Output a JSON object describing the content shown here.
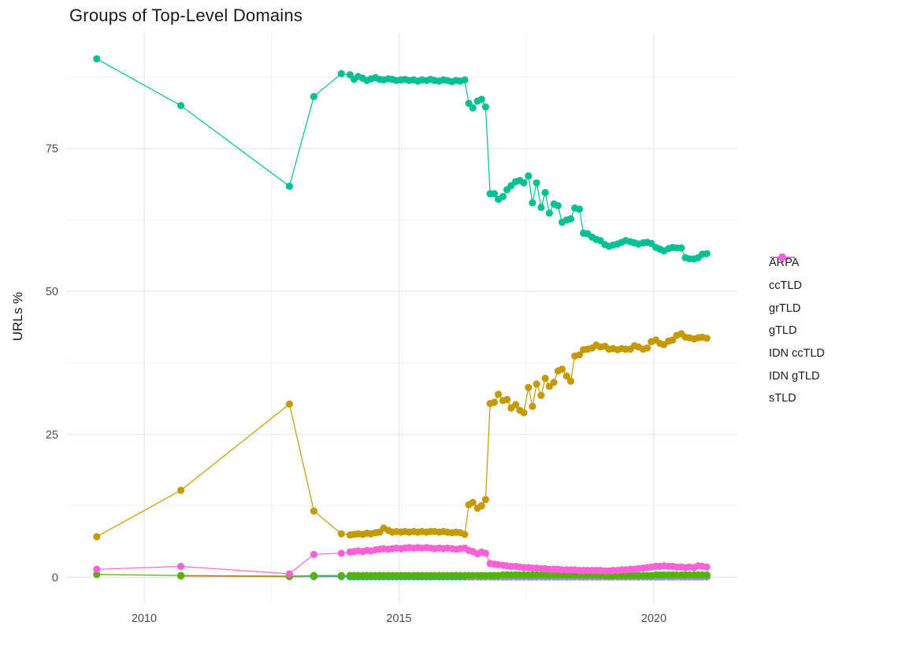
{
  "chart_data": {
    "type": "line",
    "title": "Groups of Top-Level Domains",
    "xlabel": "",
    "ylabel": "URLs %",
    "legend_position": "right",
    "grid": true,
    "x_ticks": [
      2010,
      2015,
      2020
    ],
    "x_minor_ticks": [
      2012.5,
      2017.5
    ],
    "y_ticks": [
      0,
      25,
      50,
      75
    ],
    "y_minor_ticks": [
      12.5,
      37.5,
      62.5,
      87.5
    ],
    "xlim": [
      2008.47,
      2021.64
    ],
    "ylim": [
      -4.5,
      95.2
    ],
    "grid_major_color": "#e3e3e3",
    "grid_minor_color": "#f0f0f0",
    "draw_order": [
      "ARPA",
      "IDN ccTLD",
      "IDN gTLD",
      "grTLD",
      "sTLD",
      "ccTLD",
      "gTLD"
    ],
    "x": [
      2009.07,
      2010.72,
      2012.85,
      2013.33,
      2013.87,
      2014.04,
      2014.12,
      2014.2,
      2014.29,
      2014.37,
      2014.45,
      2014.54,
      2014.62,
      2014.7,
      2014.79,
      2014.87,
      2014.95,
      2015.04,
      2015.12,
      2015.2,
      2015.29,
      2015.37,
      2015.45,
      2015.54,
      2015.62,
      2015.7,
      2015.79,
      2015.87,
      2015.95,
      2016.04,
      2016.12,
      2016.2,
      2016.29,
      2016.37,
      2016.45,
      2016.54,
      2016.62,
      2016.7,
      2016.79,
      2016.87,
      2016.95,
      2017.04,
      2017.12,
      2017.2,
      2017.29,
      2017.37,
      2017.45,
      2017.54,
      2017.62,
      2017.7,
      2017.79,
      2017.87,
      2017.95,
      2018.04,
      2018.12,
      2018.2,
      2018.29,
      2018.37,
      2018.45,
      2018.54,
      2018.62,
      2018.7,
      2018.79,
      2018.87,
      2018.95,
      2019.04,
      2019.12,
      2019.2,
      2019.29,
      2019.37,
      2019.45,
      2019.54,
      2019.62,
      2019.7,
      2019.79,
      2019.87,
      2019.95,
      2020.04,
      2020.12,
      2020.2,
      2020.29,
      2020.37,
      2020.45,
      2020.54,
      2020.62,
      2020.7,
      2020.79,
      2020.87,
      2020.95,
      2021.04
    ],
    "series": [
      {
        "name": "ARPA",
        "color": "#F8766D",
        "values": [
          null,
          0.2,
          0.1,
          0.1,
          0.1,
          0.1,
          0.1,
          0.1,
          0.1,
          0.1,
          0.1,
          0.1,
          0.1,
          0.1,
          0.1,
          0.1,
          0.1,
          0.1,
          0.1,
          0.1,
          0.1,
          0.1,
          0.1,
          0.1,
          0.1,
          0.1,
          0.1,
          0.1,
          0.1,
          0.1,
          0.1,
          0.1,
          0.1,
          0.1,
          0.1,
          0.1,
          0.1,
          0.1,
          0.1,
          0.1,
          0.1,
          0.1,
          0.1,
          0.1,
          0.1,
          0.1,
          0.1,
          0.1,
          0.1,
          0.1,
          0.1,
          0.1,
          0.1,
          0.1,
          0.1,
          0.1,
          0.1,
          0.1,
          0.1,
          0.1,
          0.1,
          0.1,
          0.1,
          0.1,
          0.1,
          0.1,
          0.1,
          0.1,
          0.1,
          0.1,
          0.1,
          0.1,
          0.1,
          0.1,
          0.1,
          0.1,
          0.1,
          0.1,
          0.1,
          0.1,
          0.1,
          0.1,
          0.1,
          0.1,
          0.1,
          0.1,
          0.1,
          0.1,
          0.1,
          0.1
        ]
      },
      {
        "name": "ccTLD",
        "color": "#C49A00",
        "values": [
          7.1,
          15.2,
          30.3,
          11.6,
          7.6,
          7.4,
          7.5,
          7.6,
          7.5,
          7.7,
          7.6,
          7.8,
          7.9,
          8.6,
          8.2,
          7.9,
          8.0,
          7.9,
          8.0,
          7.9,
          8.0,
          7.9,
          8.0,
          7.9,
          8.0,
          8.0,
          7.9,
          8.0,
          7.9,
          7.8,
          7.9,
          7.8,
          7.5,
          12.7,
          13.1,
          12.1,
          12.5,
          13.6,
          30.4,
          30.6,
          32.0,
          30.9,
          31.1,
          29.6,
          30.2,
          29.2,
          28.8,
          33.2,
          29.9,
          33.8,
          31.8,
          34.8,
          33.4,
          34.1,
          36.1,
          36.4,
          35.2,
          34.3,
          38.7,
          38.9,
          39.8,
          39.9,
          40.1,
          40.6,
          40.3,
          40.4,
          39.9,
          40.0,
          39.8,
          40.0,
          39.9,
          39.9,
          40.5,
          40.3,
          39.9,
          40.1,
          41.2,
          41.5,
          40.9,
          40.7,
          41.3,
          41.5,
          42.3,
          42.6,
          42.0,
          41.9,
          41.7,
          41.9,
          42.0,
          41.8
        ]
      },
      {
        "name": "grTLD",
        "color": "#53B400",
        "values": [
          0.5,
          0.3,
          0.2,
          0.3,
          0.3,
          0.3,
          0.3,
          0.3,
          0.3,
          0.3,
          0.3,
          0.3,
          0.3,
          0.3,
          0.3,
          0.3,
          0.3,
          0.3,
          0.3,
          0.3,
          0.3,
          0.3,
          0.3,
          0.3,
          0.3,
          0.3,
          0.3,
          0.3,
          0.3,
          0.3,
          0.3,
          0.3,
          0.3,
          0.3,
          0.3,
          0.3,
          0.3,
          0.3,
          0.3,
          0.3,
          0.3,
          0.4,
          0.4,
          0.4,
          0.4,
          0.4,
          0.4,
          0.4,
          0.4,
          0.4,
          0.4,
          0.4,
          0.4,
          0.4,
          0.4,
          0.4,
          0.4,
          0.4,
          0.4,
          0.4,
          0.4,
          0.4,
          0.4,
          0.4,
          0.4,
          0.3,
          0.3,
          0.3,
          0.3,
          0.3,
          0.3,
          0.3,
          0.3,
          0.3,
          0.3,
          0.3,
          0.3,
          0.4,
          0.4,
          0.4,
          0.4,
          0.4,
          0.4,
          0.4,
          0.4,
          0.4,
          0.4,
          0.4,
          0.4,
          0.4
        ]
      },
      {
        "name": "gTLD",
        "color": "#00C094",
        "values": [
          90.7,
          82.5,
          68.4,
          84.1,
          88.1,
          87.9,
          87.1,
          87.6,
          87.3,
          86.9,
          87.2,
          87.4,
          87.1,
          87.0,
          87.2,
          87.1,
          86.9,
          87.0,
          87.1,
          86.9,
          87.0,
          86.8,
          87.0,
          86.9,
          87.1,
          86.9,
          86.8,
          87.0,
          86.9,
          86.7,
          86.9,
          86.8,
          87.0,
          82.9,
          82.1,
          83.3,
          83.6,
          82.3,
          67.1,
          67.1,
          66.1,
          66.6,
          67.8,
          68.5,
          69.2,
          69.4,
          69.0,
          70.2,
          65.5,
          69.0,
          64.7,
          67.3,
          63.7,
          65.3,
          65.0,
          62.1,
          62.5,
          62.7,
          64.6,
          64.4,
          60.2,
          60.1,
          59.5,
          59.1,
          58.9,
          58.2,
          57.9,
          58.1,
          58.3,
          58.6,
          58.9,
          58.7,
          58.5,
          58.3,
          58.5,
          58.6,
          58.4,
          57.7,
          57.4,
          57.1,
          57.5,
          57.7,
          57.6,
          57.6,
          55.9,
          55.7,
          55.7,
          55.9,
          56.5,
          56.6
        ]
      },
      {
        "name": "IDN ccTLD",
        "color": "#00B6EB",
        "values": [
          null,
          null,
          0.2,
          0.2,
          0.15,
          0.1,
          0.1,
          0.1,
          0.1,
          0.1,
          0.1,
          0.1,
          0.1,
          0.1,
          0.1,
          0.1,
          0.1,
          0.1,
          0.1,
          0.1,
          0.1,
          0.1,
          0.1,
          0.1,
          0.1,
          0.1,
          0.1,
          0.1,
          0.1,
          0.1,
          0.1,
          0.1,
          0.1,
          0.1,
          0.1,
          0.1,
          0.1,
          0.1,
          0.1,
          0.1,
          0.1,
          0.1,
          0.1,
          0.1,
          0.1,
          0.1,
          0.1,
          0.1,
          0.1,
          0.1,
          0.1,
          0.1,
          0.1,
          0.1,
          0.1,
          0.1,
          0.1,
          0.1,
          0.1,
          0.1,
          0.1,
          0.1,
          0.1,
          0.1,
          0.1,
          0.1,
          0.1,
          0.1,
          0.1,
          0.1,
          0.1,
          0.1,
          0.1,
          0.1,
          0.1,
          0.1,
          0.1,
          0.1,
          0.1,
          0.1,
          0.1,
          0.1,
          0.1,
          0.1,
          0.1,
          0.1,
          0.1,
          0.1,
          0.1,
          0.1
        ]
      },
      {
        "name": "IDN gTLD",
        "color": "#A58AFF",
        "values": [
          null,
          null,
          null,
          null,
          null,
          null,
          null,
          null,
          null,
          null,
          null,
          null,
          null,
          null,
          null,
          null,
          null,
          null,
          null,
          null,
          null,
          null,
          null,
          null,
          null,
          null,
          null,
          null,
          null,
          null,
          null,
          null,
          null,
          0.05,
          0.05,
          0.05,
          0.05,
          0.05,
          0.05,
          0.05,
          0.05,
          0.05,
          0.05,
          0.05,
          0.05,
          0.05,
          0.05,
          0.05,
          0.05,
          0.05,
          0.05,
          0.05,
          0.05,
          0.05,
          0.05,
          0.05,
          0.05,
          0.05,
          0.05,
          0.05,
          0.05,
          0.05,
          0.05,
          0.05,
          0.05,
          0.05,
          0.05,
          0.05,
          0.05,
          0.05,
          0.05,
          0.05,
          0.05,
          0.05,
          0.05,
          0.05,
          0.05,
          0.05,
          0.05,
          0.05,
          0.05,
          0.05,
          0.05,
          0.05,
          0.05,
          0.05,
          0.05,
          0.05,
          0.05,
          0.05
        ]
      },
      {
        "name": "sTLD",
        "color": "#FB61D7",
        "values": [
          1.4,
          1.9,
          0.6,
          4.0,
          4.2,
          4.4,
          4.5,
          4.6,
          4.5,
          4.7,
          4.6,
          4.8,
          4.9,
          5.0,
          4.9,
          5.0,
          5.1,
          5.0,
          5.1,
          5.2,
          5.1,
          5.2,
          5.1,
          5.2,
          5.1,
          5.0,
          5.1,
          5.0,
          5.1,
          5.0,
          4.9,
          5.0,
          5.1,
          4.7,
          4.5,
          4.1,
          4.4,
          4.2,
          2.4,
          2.3,
          2.2,
          2.1,
          2.0,
          1.9,
          1.9,
          1.8,
          1.7,
          1.7,
          1.6,
          1.6,
          1.5,
          1.5,
          1.4,
          1.4,
          1.4,
          1.3,
          1.3,
          1.3,
          1.3,
          1.2,
          1.2,
          1.2,
          1.2,
          1.2,
          1.2,
          1.1,
          1.1,
          1.2,
          1.2,
          1.3,
          1.3,
          1.4,
          1.4,
          1.5,
          1.6,
          1.7,
          1.8,
          1.9,
          1.9,
          2.0,
          1.9,
          1.9,
          1.8,
          1.8,
          1.7,
          1.8,
          1.7,
          2.0,
          1.9,
          1.8
        ]
      }
    ]
  }
}
